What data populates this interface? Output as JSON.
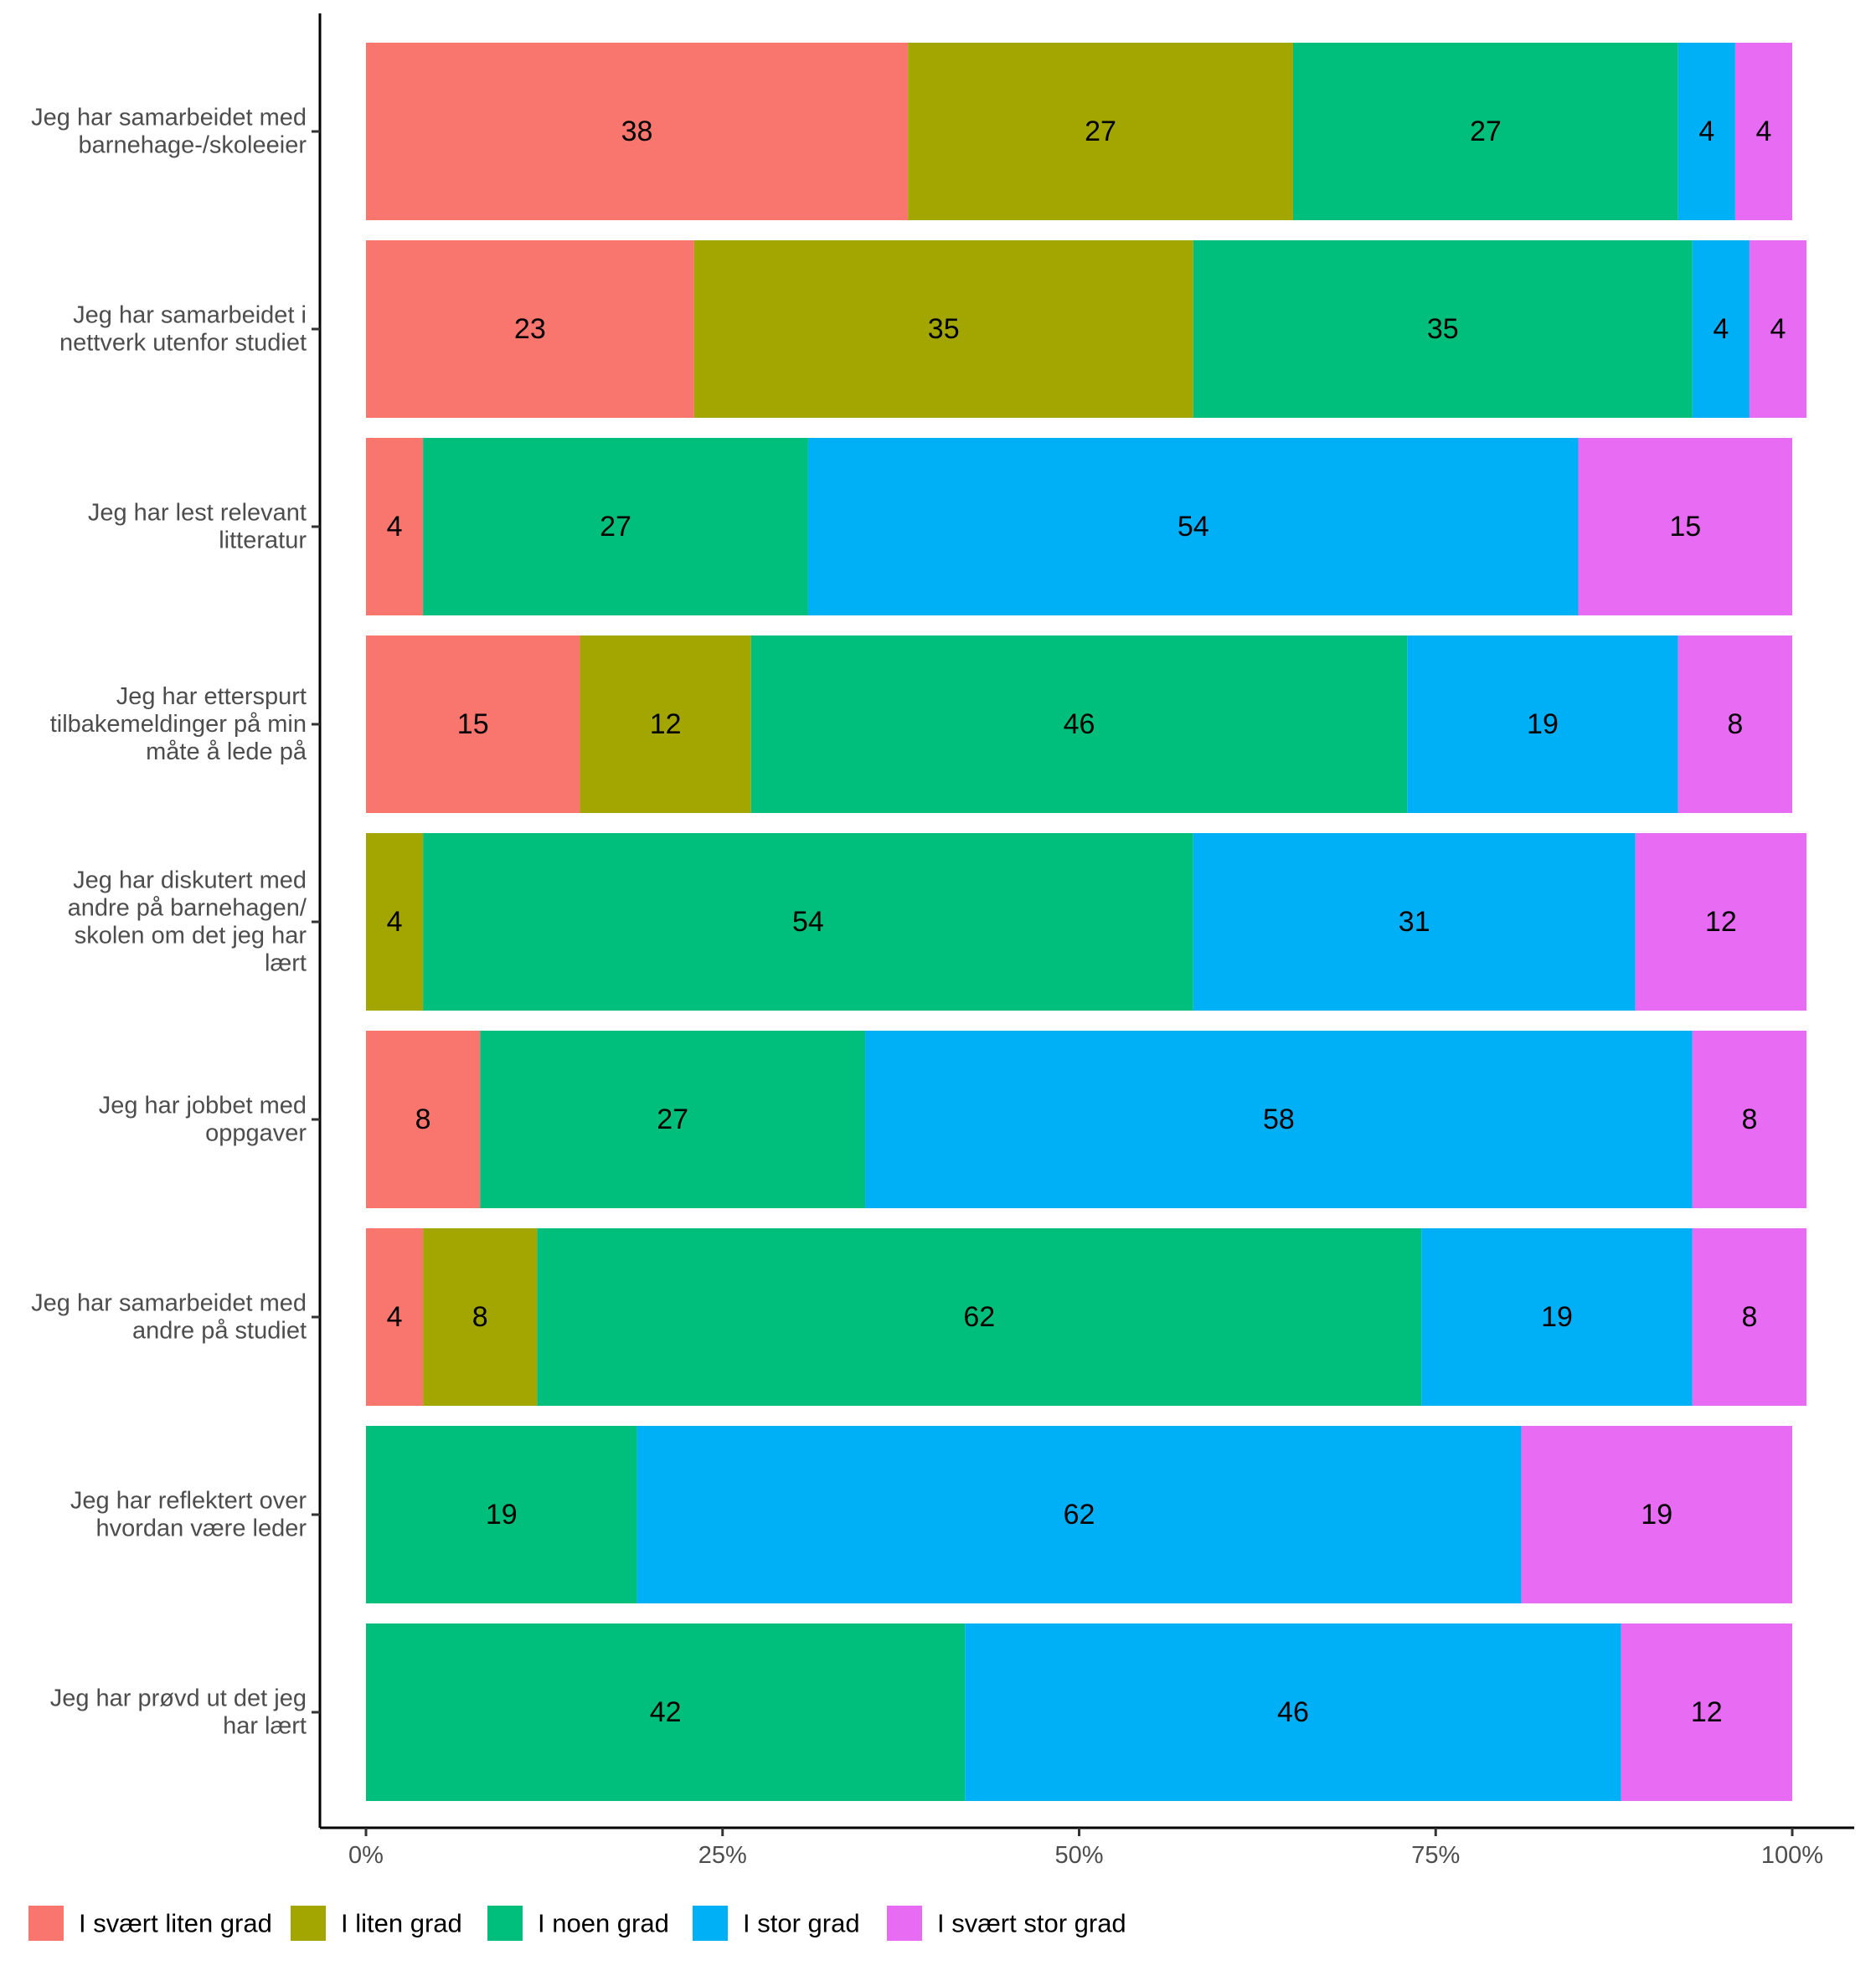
{
  "chart_data": {
    "type": "bar",
    "orientation": "horizontal",
    "stacked": true,
    "percent_scale": true,
    "title": "",
    "xlabel": "",
    "ylabel": "",
    "xlim": [
      0,
      100
    ],
    "x_ticks": [
      "0%",
      "25%",
      "50%",
      "75%",
      "100%"
    ],
    "grid": false,
    "legend_position": "bottom",
    "categories": [
      "Jeg har samarbeidet med barnehage-/skoleeier",
      "Jeg har samarbeidet i nettverk utenfor studiet",
      "Jeg har lest relevant litteratur",
      "Jeg har etterspurt tilbakemeldinger på min måte å lede på",
      "Jeg har diskutert med andre på barnehagen/ skolen om det jeg har lært",
      "Jeg har jobbet med oppgaver",
      "Jeg har samarbeidet med andre på studiet",
      "Jeg har reflektert over hvordan være leder",
      "Jeg har prøvd ut det jeg har lært"
    ],
    "category_label_lines": [
      [
        "Jeg har samarbeidet med",
        "barnehage-/skoleeier"
      ],
      [
        "Jeg har samarbeidet i",
        "nettverk utenfor studiet"
      ],
      [
        "Jeg har lest relevant",
        "litteratur"
      ],
      [
        "Jeg har etterspurt",
        "tilbakemeldinger på min",
        "måte å lede på"
      ],
      [
        "Jeg har diskutert med",
        "andre på barnehagen/",
        "skolen om det jeg har",
        "lært"
      ],
      [
        "Jeg har jobbet med",
        "oppgaver"
      ],
      [
        "Jeg har samarbeidet med",
        "andre på studiet"
      ],
      [
        "Jeg har reflektert over",
        "hvordan være leder"
      ],
      [
        "Jeg har prøvd ut det jeg",
        "har lært"
      ]
    ],
    "series": [
      {
        "name": "I svært liten grad",
        "color": "#F8766D",
        "values": [
          38,
          23,
          4,
          15,
          0,
          8,
          4,
          0,
          0
        ]
      },
      {
        "name": "I liten grad",
        "color": "#A3A500",
        "values": [
          27,
          35,
          0,
          12,
          4,
          0,
          8,
          0,
          0
        ]
      },
      {
        "name": "I noen grad",
        "color": "#00BF7D",
        "values": [
          27,
          35,
          27,
          46,
          54,
          27,
          62,
          19,
          42
        ]
      },
      {
        "name": "I stor grad",
        "color": "#00B0F6",
        "values": [
          4,
          4,
          54,
          19,
          31,
          58,
          19,
          62,
          46
        ]
      },
      {
        "name": "I svært stor grad",
        "color": "#E76BF3",
        "values": [
          4,
          4,
          15,
          8,
          12,
          8,
          8,
          19,
          12
        ]
      }
    ]
  }
}
